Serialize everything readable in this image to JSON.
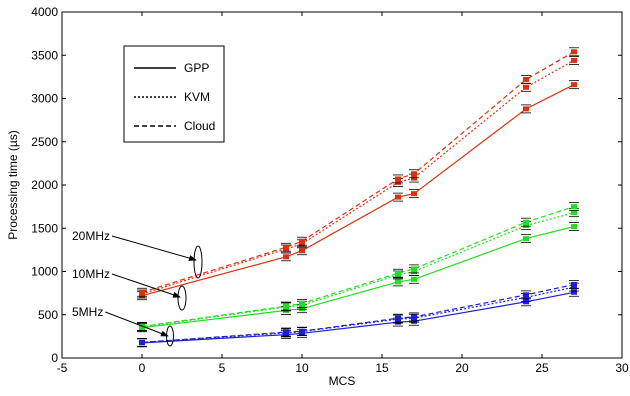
{
  "chart_data": {
    "type": "line",
    "xlabel": "MCS",
    "ylabel": "Processing time (µs)",
    "xlim": [
      -5,
      30
    ],
    "ylim": [
      0,
      4000
    ],
    "xticks": [
      -5,
      0,
      5,
      10,
      15,
      20,
      25,
      30
    ],
    "yticks": [
      0,
      500,
      1000,
      1500,
      2000,
      2500,
      3000,
      3500,
      4000
    ],
    "grid": false,
    "x": [
      0,
      9,
      10,
      16,
      17,
      24,
      27
    ],
    "legend": {
      "placement": "top-left",
      "entries": [
        {
          "label": "GPP",
          "style": "solid"
        },
        {
          "label": "KVM",
          "style": "dotted"
        },
        {
          "label": "Cloud",
          "style": "dashed"
        }
      ]
    },
    "annotations": [
      "20MHz",
      "10MHz",
      "5MHz"
    ],
    "colors": {
      "20MHz": "#d8330f",
      "10MHz": "#22dd22",
      "5MHz": "#1e1ed6"
    },
    "series": [
      {
        "group": "20MHz",
        "style": "solid",
        "values": [
          720,
          1170,
          1240,
          1860,
          1900,
          2880,
          3160
        ]
      },
      {
        "group": "20MHz",
        "style": "dotted",
        "values": [
          740,
          1260,
          1320,
          2030,
          2080,
          3130,
          3440
        ]
      },
      {
        "group": "20MHz",
        "style": "dashed",
        "values": [
          760,
          1280,
          1350,
          2070,
          2130,
          3220,
          3540
        ]
      },
      {
        "group": "10MHz",
        "style": "solid",
        "values": [
          350,
          550,
          570,
          880,
          910,
          1380,
          1520
        ]
      },
      {
        "group": "10MHz",
        "style": "dotted",
        "values": [
          360,
          590,
          610,
          960,
          1000,
          1530,
          1680
        ]
      },
      {
        "group": "10MHz",
        "style": "dashed",
        "values": [
          365,
          600,
          630,
          980,
          1030,
          1570,
          1750
        ]
      },
      {
        "group": "5MHz",
        "style": "solid",
        "values": [
          175,
          270,
          285,
          415,
          425,
          650,
          760
        ]
      },
      {
        "group": "5MHz",
        "style": "dotted",
        "values": [
          180,
          290,
          305,
          450,
          460,
          700,
          820
        ]
      },
      {
        "group": "5MHz",
        "style": "dashed",
        "values": [
          180,
          300,
          310,
          460,
          475,
          730,
          850
        ]
      }
    ]
  }
}
